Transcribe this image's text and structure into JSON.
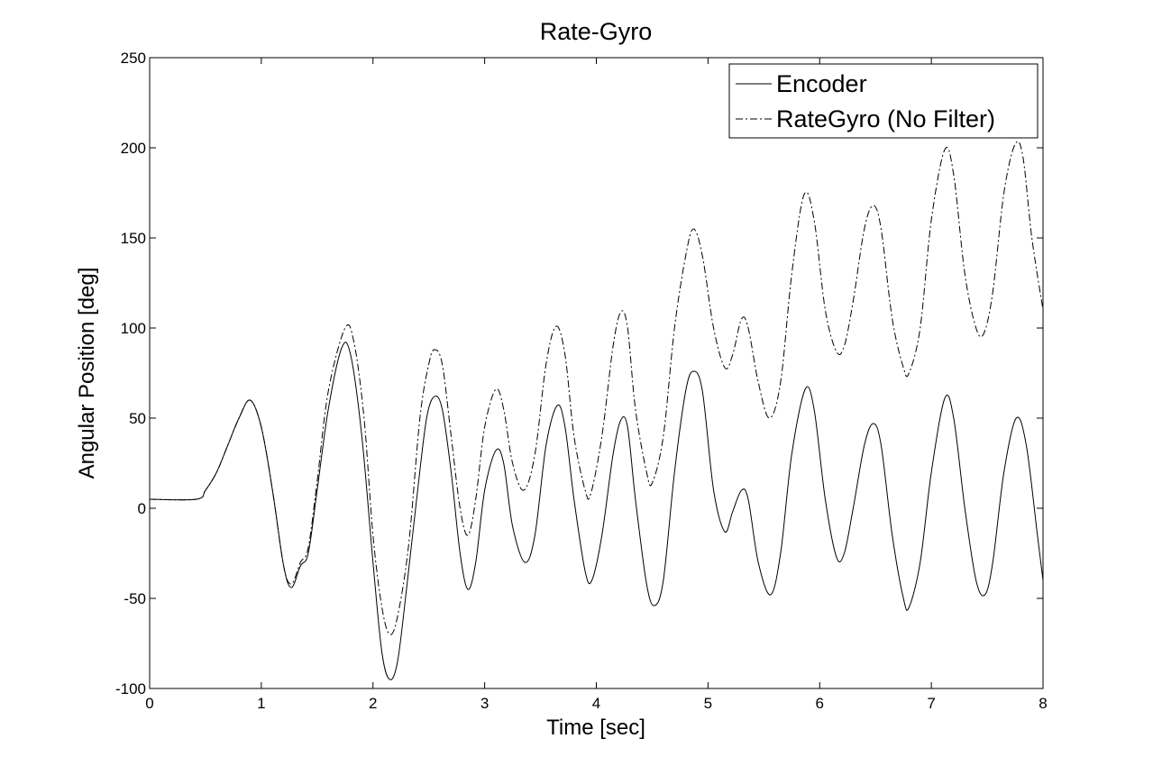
{
  "chart_data": {
    "type": "line",
    "title": "Rate-Gyro",
    "xlabel": "Time [sec]",
    "ylabel": "Angular Position [deg]",
    "xlim": [
      0,
      8
    ],
    "ylim": [
      -100,
      250
    ],
    "xticks": [
      0,
      1,
      2,
      3,
      4,
      5,
      6,
      7,
      8
    ],
    "yticks": [
      -100,
      -50,
      0,
      50,
      100,
      150,
      200,
      250
    ],
    "grid": false,
    "legend_position": "top-right",
    "series": [
      {
        "name": "Encoder",
        "line_style": "solid",
        "color": "#000000",
        "points": [
          [
            0,
            5
          ],
          [
            0.42,
            5
          ],
          [
            0.5,
            10
          ],
          [
            0.6,
            20
          ],
          [
            0.7,
            35
          ],
          [
            0.8,
            50
          ],
          [
            0.9,
            60
          ],
          [
            1.0,
            45
          ],
          [
            1.1,
            10
          ],
          [
            1.2,
            -32
          ],
          [
            1.27,
            -44
          ],
          [
            1.35,
            -32
          ],
          [
            1.42,
            -25
          ],
          [
            1.5,
            10
          ],
          [
            1.6,
            55
          ],
          [
            1.72,
            89
          ],
          [
            1.8,
            85
          ],
          [
            1.9,
            40
          ],
          [
            2.0,
            -30
          ],
          [
            2.08,
            -80
          ],
          [
            2.15,
            -95
          ],
          [
            2.22,
            -85
          ],
          [
            2.3,
            -45
          ],
          [
            2.4,
            10
          ],
          [
            2.48,
            50
          ],
          [
            2.55,
            62
          ],
          [
            2.62,
            55
          ],
          [
            2.7,
            20
          ],
          [
            2.78,
            -25
          ],
          [
            2.85,
            -45
          ],
          [
            2.92,
            -30
          ],
          [
            3.0,
            10
          ],
          [
            3.1,
            32
          ],
          [
            3.17,
            25
          ],
          [
            3.25,
            -10
          ],
          [
            3.36,
            -30
          ],
          [
            3.45,
            -15
          ],
          [
            3.55,
            35
          ],
          [
            3.65,
            57
          ],
          [
            3.72,
            45
          ],
          [
            3.8,
            5
          ],
          [
            3.9,
            -35
          ],
          [
            3.96,
            -40
          ],
          [
            4.05,
            -15
          ],
          [
            4.15,
            30
          ],
          [
            4.22,
            49
          ],
          [
            4.28,
            45
          ],
          [
            4.35,
            5
          ],
          [
            4.45,
            -42
          ],
          [
            4.52,
            -54
          ],
          [
            4.6,
            -40
          ],
          [
            4.7,
            20
          ],
          [
            4.8,
            65
          ],
          [
            4.87,
            76
          ],
          [
            4.95,
            65
          ],
          [
            5.05,
            10
          ],
          [
            5.15,
            -13
          ],
          [
            5.22,
            -2
          ],
          [
            5.3,
            10
          ],
          [
            5.36,
            5
          ],
          [
            5.45,
            -30
          ],
          [
            5.56,
            -48
          ],
          [
            5.65,
            -25
          ],
          [
            5.75,
            30
          ],
          [
            5.87,
            66
          ],
          [
            5.95,
            55
          ],
          [
            6.05,
            5
          ],
          [
            6.15,
            -27
          ],
          [
            6.22,
            -25
          ],
          [
            6.3,
            0
          ],
          [
            6.4,
            35
          ],
          [
            6.48,
            47
          ],
          [
            6.55,
            35
          ],
          [
            6.65,
            -15
          ],
          [
            6.75,
            -50
          ],
          [
            6.8,
            -55
          ],
          [
            6.9,
            -30
          ],
          [
            7.0,
            20
          ],
          [
            7.12,
            61
          ],
          [
            7.2,
            50
          ],
          [
            7.3,
            0
          ],
          [
            7.4,
            -40
          ],
          [
            7.48,
            -48
          ],
          [
            7.55,
            -30
          ],
          [
            7.65,
            20
          ],
          [
            7.76,
            50
          ],
          [
            7.85,
            35
          ],
          [
            7.95,
            -15
          ],
          [
            8.0,
            -40
          ]
        ]
      },
      {
        "name": "RateGyro (No Filter)",
        "line_style": "dash-dot",
        "color": "#000000",
        "points": [
          [
            0,
            5
          ],
          [
            0.42,
            5
          ],
          [
            0.5,
            10
          ],
          [
            0.6,
            20
          ],
          [
            0.7,
            35
          ],
          [
            0.8,
            50
          ],
          [
            0.9,
            60
          ],
          [
            1.0,
            45
          ],
          [
            1.1,
            10
          ],
          [
            1.2,
            -32
          ],
          [
            1.27,
            -42
          ],
          [
            1.35,
            -30
          ],
          [
            1.42,
            -22
          ],
          [
            1.5,
            15
          ],
          [
            1.6,
            65
          ],
          [
            1.75,
            100
          ],
          [
            1.83,
            92
          ],
          [
            1.92,
            50
          ],
          [
            2.0,
            -15
          ],
          [
            2.08,
            -55
          ],
          [
            2.15,
            -70
          ],
          [
            2.22,
            -60
          ],
          [
            2.32,
            -20
          ],
          [
            2.42,
            50
          ],
          [
            2.5,
            80
          ],
          [
            2.55,
            88
          ],
          [
            2.62,
            80
          ],
          [
            2.7,
            40
          ],
          [
            2.78,
            0
          ],
          [
            2.85,
            -15
          ],
          [
            2.92,
            5
          ],
          [
            3.0,
            45
          ],
          [
            3.1,
            66
          ],
          [
            3.17,
            55
          ],
          [
            3.25,
            25
          ],
          [
            3.35,
            10
          ],
          [
            3.45,
            30
          ],
          [
            3.55,
            80
          ],
          [
            3.64,
            101
          ],
          [
            3.72,
            85
          ],
          [
            3.8,
            40
          ],
          [
            3.9,
            10
          ],
          [
            3.95,
            8
          ],
          [
            4.05,
            40
          ],
          [
            4.15,
            90
          ],
          [
            4.22,
            109
          ],
          [
            4.28,
            100
          ],
          [
            4.35,
            55
          ],
          [
            4.45,
            20
          ],
          [
            4.5,
            14
          ],
          [
            4.6,
            40
          ],
          [
            4.7,
            100
          ],
          [
            4.8,
            140
          ],
          [
            4.87,
            155
          ],
          [
            4.95,
            140
          ],
          [
            5.05,
            100
          ],
          [
            5.15,
            78
          ],
          [
            5.22,
            85
          ],
          [
            5.3,
            105
          ],
          [
            5.36,
            100
          ],
          [
            5.45,
            70
          ],
          [
            5.55,
            50
          ],
          [
            5.65,
            70
          ],
          [
            5.75,
            130
          ],
          [
            5.86,
            174
          ],
          [
            5.95,
            160
          ],
          [
            6.05,
            110
          ],
          [
            6.15,
            87
          ],
          [
            6.22,
            90
          ],
          [
            6.3,
            115
          ],
          [
            6.4,
            155
          ],
          [
            6.48,
            168
          ],
          [
            6.55,
            155
          ],
          [
            6.65,
            105
          ],
          [
            6.75,
            78
          ],
          [
            6.8,
            75
          ],
          [
            6.9,
            100
          ],
          [
            7.0,
            160
          ],
          [
            7.12,
            199
          ],
          [
            7.2,
            185
          ],
          [
            7.3,
            130
          ],
          [
            7.4,
            100
          ],
          [
            7.47,
            97
          ],
          [
            7.55,
            120
          ],
          [
            7.65,
            175
          ],
          [
            7.75,
            202
          ],
          [
            7.82,
            195
          ],
          [
            7.9,
            150
          ],
          [
            8.0,
            110
          ]
        ]
      }
    ]
  }
}
